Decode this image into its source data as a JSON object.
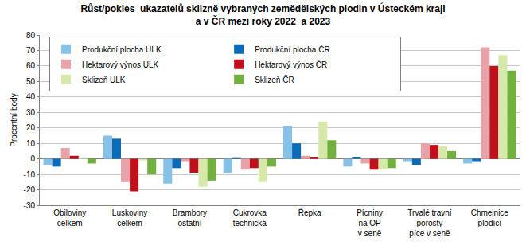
{
  "chart_data": {
    "type": "bar",
    "title": "Růst/pokles  ukazatelů sklizně vybraných zemědělských plodin v Ústeckém kraji\na v ČR mezi roky 2022  a 2023",
    "y_label": "Procentní body",
    "categories": [
      "Obiloviny\ncelkem",
      "Luskoviny\ncelkem",
      "Brambory\nostatní",
      "Cukrovka\ntechnická",
      "Řepka",
      "Pícniny\nna OP\nv seně",
      "Trvalé travní\nporosty\npíce v seně",
      "Chmelnice\nplodící"
    ],
    "series": [
      {
        "name": "Produkční plocha ULK",
        "color": "#86c1e8",
        "values": [
          -4,
          15,
          -16,
          -9,
          21,
          -5,
          -2,
          -3
        ]
      },
      {
        "name": "Produkční plocha ČR",
        "color": "#0a6cb8",
        "values": [
          -5,
          13,
          -6,
          0.5,
          10,
          1,
          -4,
          -2
        ]
      },
      {
        "name": "Hektarový výnos ULK",
        "color": "#e8a3a8",
        "values": [
          7,
          -15,
          -2,
          -7,
          2,
          -3,
          10,
          72
        ]
      },
      {
        "name": "Hektarový výnos ČR",
        "color": "#c0101c",
        "values": [
          2,
          -21,
          -9,
          -6,
          1,
          -7,
          9,
          60
        ]
      },
      {
        "name": "Sklizeň ULK",
        "color": "#d7e8ab",
        "values": [
          0.5,
          -1,
          -18,
          -15,
          24,
          -7,
          8,
          67
        ]
      },
      {
        "name": "Sklizeň ČR",
        "color": "#72b13e",
        "values": [
          -3,
          -10,
          -14,
          -5,
          12,
          -6,
          5,
          57
        ]
      }
    ],
    "ylim": [
      -30,
      80
    ],
    "yticks": [
      -30,
      -20,
      -10,
      0,
      10,
      20,
      30,
      40,
      50,
      60,
      70,
      80
    ],
    "grid": true,
    "legend": "top-left"
  }
}
